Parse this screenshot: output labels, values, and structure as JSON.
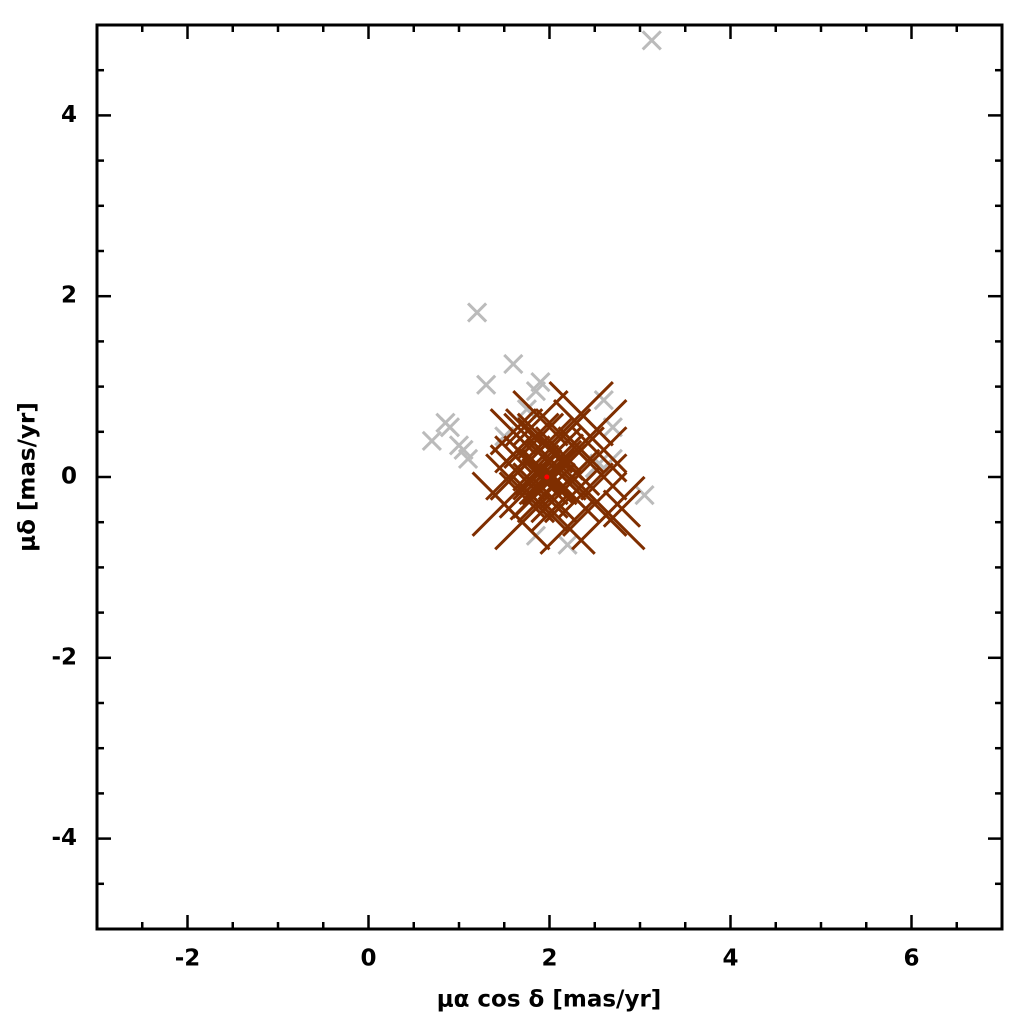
{
  "chart_data": {
    "type": "scatter",
    "xlabel": "μα cos δ [mas/yr]",
    "ylabel": "μδ [mas/yr]",
    "xlim": [
      -3,
      7
    ],
    "ylim": [
      -5,
      5
    ],
    "xticks": [
      -2,
      0,
      2,
      4,
      6
    ],
    "yticks": [
      -4,
      -2,
      0,
      2,
      4
    ],
    "xminorticks": [
      -2.5,
      -1.5,
      -1,
      -0.5,
      0.5,
      1,
      1.5,
      2.5,
      3,
      3.5,
      4.5,
      5,
      5.5,
      6.5
    ],
    "yminorticks": [
      -4.5,
      -3.5,
      -3,
      -2.5,
      -1.5,
      -1,
      -0.5,
      0.5,
      1,
      1.5,
      2.5,
      3,
      3.5,
      4.5
    ],
    "series": [
      {
        "color": "#bbbbbb",
        "marker": "cross",
        "size": 0.1,
        "x": [
          3.13,
          1.2,
          1.6,
          1.3,
          1.9,
          1.85,
          2.6,
          0.7,
          0.85,
          0.9,
          1.05,
          1.1,
          1.0,
          2.7,
          2.7,
          3.05,
          2.55,
          1.85,
          2.2,
          1.5,
          1.75,
          2.3,
          2.5
        ],
        "values": [
          4.83,
          1.82,
          1.25,
          1.02,
          1.05,
          0.95,
          0.85,
          0.4,
          0.6,
          0.55,
          0.3,
          0.2,
          0.35,
          0.55,
          0.2,
          -0.2,
          0.15,
          -0.65,
          -0.75,
          0.45,
          0.75,
          0.6,
          0.1
        ]
      },
      {
        "color": "#7f2e00",
        "marker": "cross",
        "x": [
          1.97,
          1.85,
          2.1,
          2.0,
          1.9,
          2.15,
          1.8,
          2.05,
          2.2,
          1.75,
          1.95,
          2.1,
          1.85,
          2.25,
          1.7,
          2.3,
          1.65,
          2.0,
          1.9,
          2.15,
          2.35,
          1.6,
          1.8,
          2.05,
          1.95,
          2.0,
          1.88,
          2.08,
          2.12,
          1.82,
          1.5,
          1.7,
          2.35,
          2.5,
          2.65,
          2.8,
          2.55,
          1.6,
          2.45,
          2.2,
          1.72,
          2.4,
          1.55,
          2.6,
          1.9
        ],
        "values": [
          0.0,
          0.1,
          0.05,
          0.2,
          -0.15,
          -0.1,
          -0.05,
          -0.25,
          0.15,
          0.2,
          0.35,
          0.3,
          -0.3,
          -0.2,
          -0.2,
          0.05,
          0.05,
          -0.4,
          0.45,
          0.45,
          0.3,
          0.25,
          0.4,
          0.1,
          -0.05,
          0.0,
          0.05,
          -0.05,
          0.22,
          -0.22,
          -0.3,
          -0.5,
          0.7,
          -0.3,
          -0.4,
          -0.35,
          0.25,
          0.5,
          0.45,
          -0.55,
          0.55,
          -0.15,
          0.0,
          0.0,
          0.65
        ],
        "sizes": [
          0.3,
          0.25,
          0.3,
          0.25,
          0.3,
          0.25,
          0.2,
          0.25,
          0.2,
          0.25,
          0.3,
          0.25,
          0.2,
          0.3,
          0.25,
          0.25,
          0.3,
          0.2,
          0.25,
          0.3,
          0.25,
          0.2,
          0.3,
          0.3,
          0.25,
          0.3,
          0.25,
          0.2,
          0.25,
          0.25,
          0.35,
          0.3,
          0.35,
          0.35,
          0.4,
          0.2,
          0.3,
          0.25,
          0.4,
          0.3,
          0.2,
          0.3,
          0.25,
          0.25,
          0.3
        ]
      },
      {
        "color": "#ff0000",
        "marker": "dot",
        "x": [
          1.97
        ],
        "values": [
          0.0
        ]
      }
    ]
  }
}
